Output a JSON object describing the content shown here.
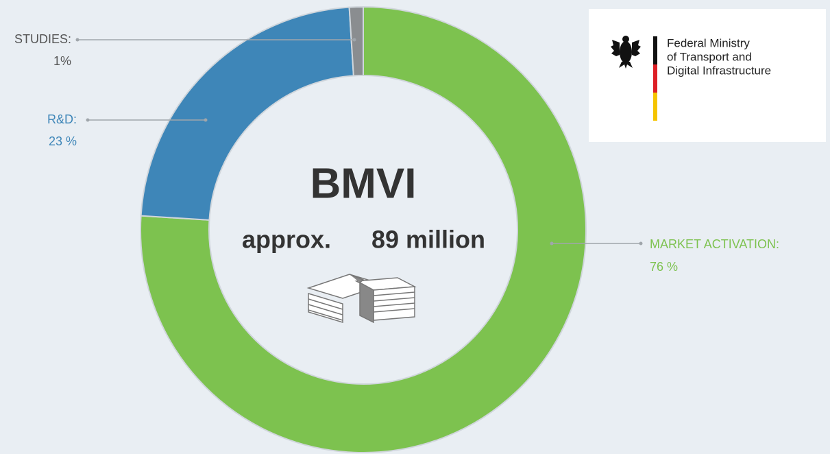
{
  "chart_data": {
    "type": "donut",
    "categories": [
      "MARKET ACTIVATION:",
      "R&D:",
      "STUDIES:"
    ],
    "values": [
      76,
      23,
      1
    ],
    "value_labels": [
      "76 %",
      "23 %",
      "1%"
    ],
    "colors": [
      "#7dc24f",
      "#3e86b8",
      "#8a8d90"
    ],
    "annotations": [
      "BMVI",
      "approx.",
      "89 million"
    ]
  },
  "logo": {
    "lines": [
      "Federal Ministry",
      "of Transport and",
      "Digital Infrastructure"
    ]
  }
}
